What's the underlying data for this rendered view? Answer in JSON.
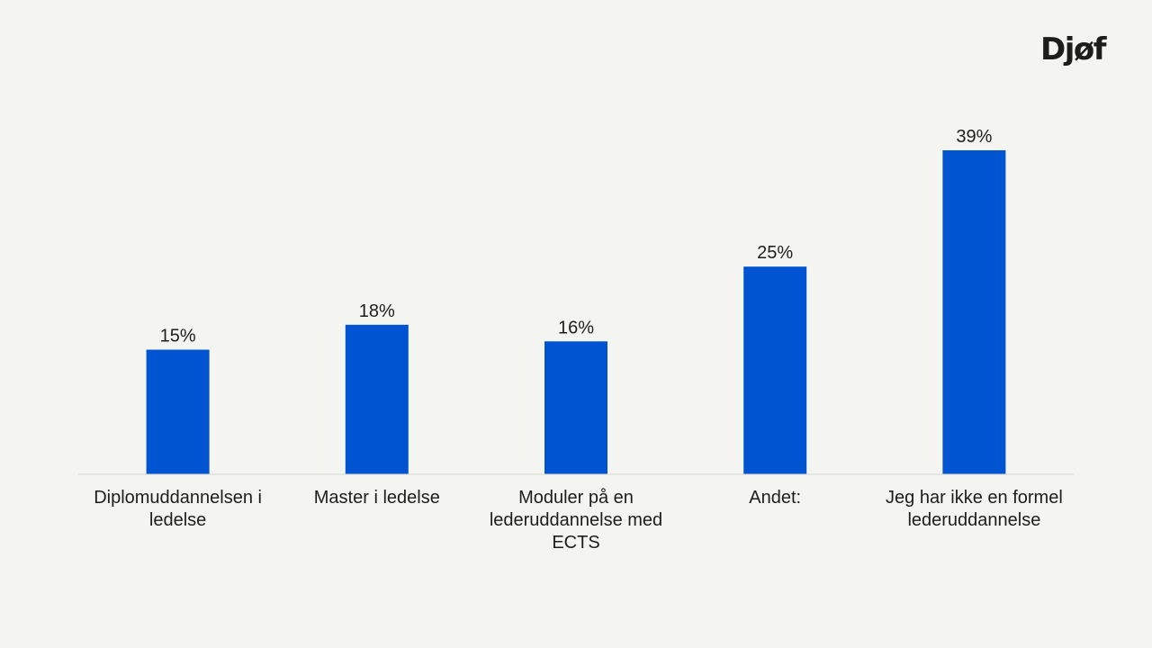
{
  "brand": {
    "logo_text": "Djøf"
  },
  "chart_data": {
    "type": "bar",
    "categories": [
      [
        "Diplomuddannelsen i",
        "ledelse"
      ],
      [
        "Master i ledelse"
      ],
      [
        "Moduler på en",
        "lederuddannelse med",
        "ECTS"
      ],
      [
        "Andet:"
      ],
      [
        "Jeg har ikke en formel",
        "lederuddannelse"
      ]
    ],
    "values": [
      15,
      18,
      16,
      25,
      39
    ],
    "value_labels": [
      "15%",
      "18%",
      "16%",
      "25%",
      "39%"
    ],
    "unit": "%",
    "ylim": [
      0,
      39
    ],
    "grid": false,
    "legend": "none",
    "colors": {
      "bar": "#0054d2",
      "axis": "#d6d8d3",
      "text": "#1d1d1b",
      "background": "#f4f5f1"
    }
  }
}
